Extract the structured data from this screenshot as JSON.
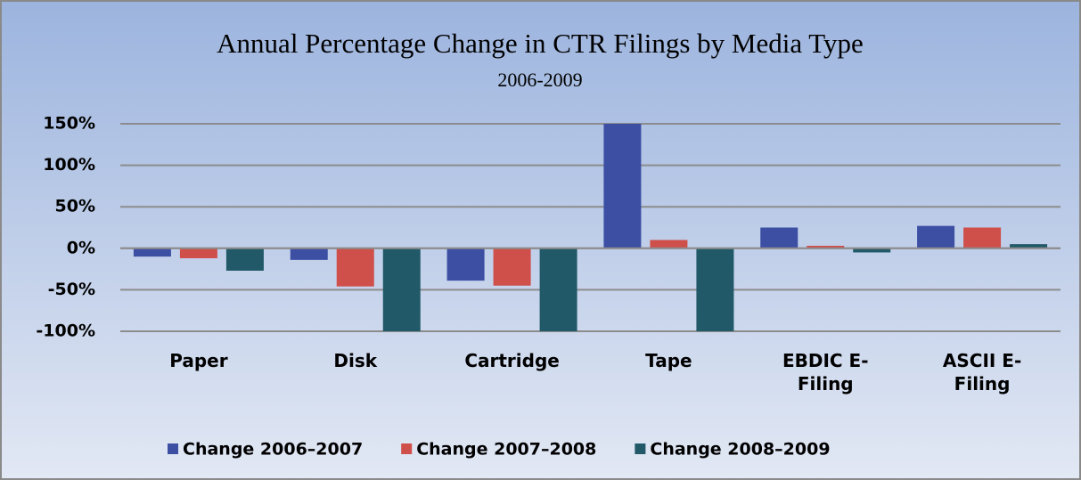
{
  "chart_data": {
    "type": "bar",
    "title": "Annual Percentage Change in CTR Filings by Media Type",
    "subtitle": "2006-2009",
    "categories": [
      "Paper",
      "Disk",
      "Cartridge",
      "Tape",
      "EBDIC E-Filing",
      "ASCII E-Filing"
    ],
    "series": [
      {
        "name": "Change 2006–2007",
        "color": "#3c4fa3",
        "values": [
          -10,
          -14,
          -39,
          150,
          25,
          27
        ]
      },
      {
        "name": "Change 2007–2008",
        "color": "#cf4f4b",
        "values": [
          -12,
          -46,
          -45,
          10,
          3,
          25
        ]
      },
      {
        "name": "Change 2008–2009",
        "color": "#215968",
        "values": [
          -27,
          -100,
          -100,
          -100,
          -5,
          5
        ]
      }
    ],
    "ylim": [
      -100,
      150
    ],
    "yticks": [
      {
        "value": -100,
        "label": "-100%"
      },
      {
        "value": -50,
        "label": "-50%"
      },
      {
        "value": 0,
        "label": "0%"
      },
      {
        "value": 50,
        "label": "50%"
      },
      {
        "value": 100,
        "label": "100%"
      },
      {
        "value": 150,
        "label": "150%"
      }
    ],
    "grid": true,
    "legend": "bottom"
  }
}
